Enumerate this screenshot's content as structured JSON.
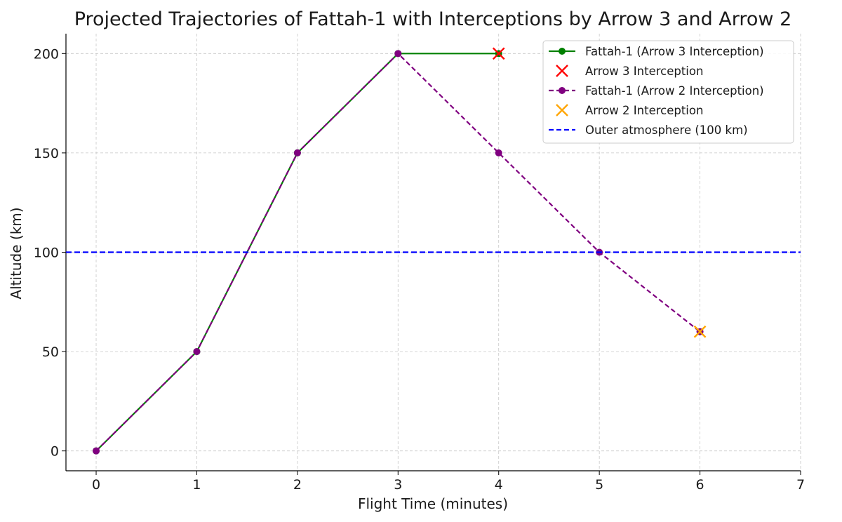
{
  "chart_data": {
    "type": "line",
    "title": "Projected Trajectories of Fattah-1 with Interceptions by Arrow 3 and Arrow 2",
    "xlabel": "Flight Time (minutes)",
    "ylabel": "Altitude (km)",
    "xlim": [
      -0.3,
      7
    ],
    "ylim": [
      -10,
      210
    ],
    "xticks": [
      0,
      1,
      2,
      3,
      4,
      5,
      6,
      7
    ],
    "yticks": [
      0,
      50,
      100,
      150,
      200
    ],
    "grid": true,
    "legend_position": "top-right",
    "series": [
      {
        "name": "Fattah-1 (Arrow 3 Interception)",
        "kind": "line",
        "style": "solid",
        "marker": "circle",
        "color": "#008000",
        "x": [
          0,
          1,
          2,
          3,
          4
        ],
        "y": [
          0,
          50,
          150,
          200,
          200
        ]
      },
      {
        "name": "Arrow 3 Interception",
        "kind": "scatter",
        "marker": "x",
        "color": "#ff0000",
        "x": [
          4
        ],
        "y": [
          200
        ]
      },
      {
        "name": "Fattah-1 (Arrow 2 Interception)",
        "kind": "line",
        "style": "dashed",
        "marker": "circle",
        "color": "#800080",
        "x": [
          0,
          1,
          2,
          3,
          4,
          5,
          6
        ],
        "y": [
          0,
          50,
          150,
          200,
          150,
          100,
          60
        ]
      },
      {
        "name": "Arrow 2 Interception",
        "kind": "scatter",
        "marker": "x",
        "color": "#ffa500",
        "x": [
          6
        ],
        "y": [
          60
        ]
      },
      {
        "name": "Outer atmosphere (100 km)",
        "kind": "hline",
        "style": "dashed",
        "color": "#0000ff",
        "y": 100
      }
    ]
  }
}
